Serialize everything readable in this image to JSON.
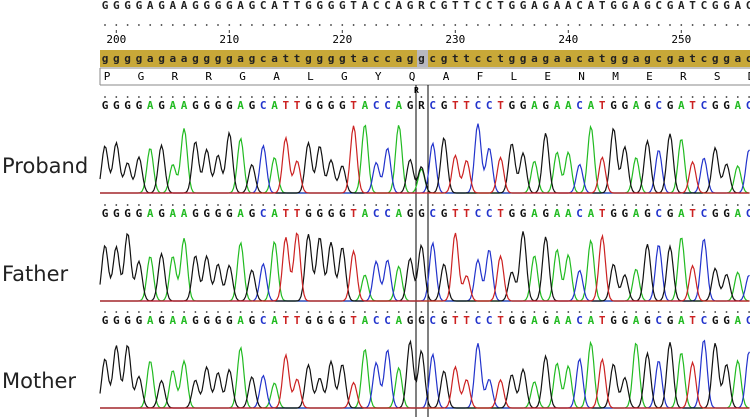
{
  "reference_sequence": "GGGGAGAAGGGGAGCATTGGGGTACCAGRCGTTCCTGGAGAACATGGAGCGATCGGAC",
  "positions": [
    200,
    210,
    220,
    230,
    240,
    250
  ],
  "reference_lowercase": "ggggagaaggggagcattggggtaccaggcgttcctggagaacatggagcgatcggac",
  "amino_acids": "PGRRGALGYQAFLENMERSD",
  "variant_marker": "R",
  "tracks": [
    {
      "label": "Proband",
      "sequence": "GGGGAGAAGGGGAGCATTGGGGTACCAGRCGTTCCTGGAGAACATGGAGCGATCGGAC"
    },
    {
      "label": "Father",
      "sequence": "GGGGAGAAGGGGAGCATTGGGGTACCAGGCGTTCCTGGAGAACATGGAGCGATCGGAC"
    },
    {
      "label": "Mother",
      "sequence": "GGGGAGAAGGGGAGCATTGGGGTACCAGGCGTTCCTGGAGAACATGGAGCGATCGGAC"
    }
  ]
}
